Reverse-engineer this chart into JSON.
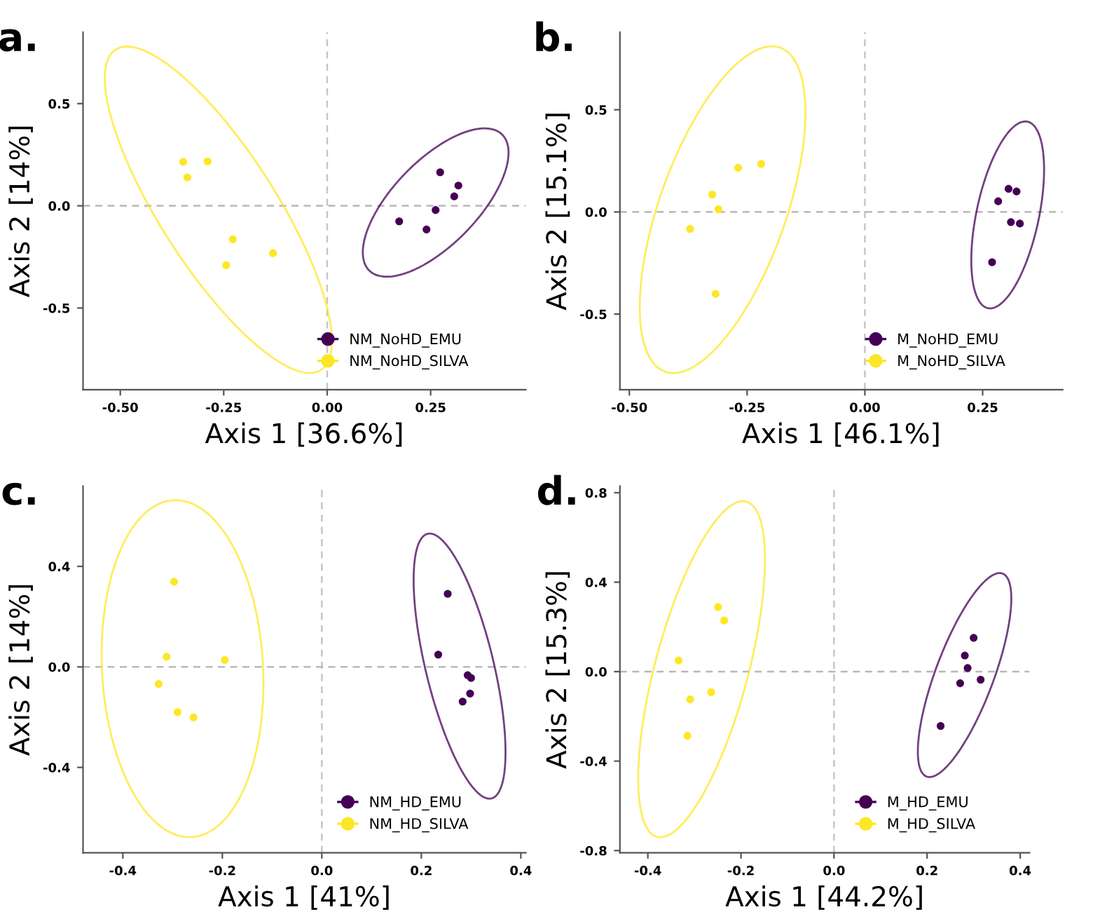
{
  "chart_data": [
    {
      "type": "scatter",
      "title": "a.",
      "xlabel": "Axis 1 [36.6%]",
      "ylabel": "Axis 2 [14%]",
      "xlim": [
        -0.59,
        0.48
      ],
      "ylim": [
        -0.9,
        0.85
      ],
      "xticks": [
        {
          "value": -0.5,
          "label": "-0.50"
        },
        {
          "value": -0.25,
          "label": "-0.25"
        },
        {
          "value": 0,
          "label": "0.00"
        },
        {
          "value": 0.25,
          "label": "0.25"
        }
      ],
      "yticks": [
        {
          "value": -0.5,
          "label": "-0.5"
        },
        {
          "value": 0,
          "label": "0.0"
        },
        {
          "value": 0.5,
          "label": "0.5"
        }
      ],
      "ref_lines": [
        {
          "axis": "x",
          "value": 0,
          "color": "#c6c6c6",
          "line_style": "dashed"
        },
        {
          "axis": "y",
          "value": 0,
          "color": "#b8b8b8",
          "line_style": "dashed"
        }
      ],
      "legend": "bottom right",
      "grid": false,
      "marker": "circle",
      "series": [
        {
          "name": "NM_NoHD_EMU",
          "color": "#440154",
          "x": [
            0.273,
            0.317,
            0.307,
            0.262,
            0.174,
            0.24
          ],
          "values": [
            0.164,
            0.099,
            0.046,
            -0.021,
            -0.076,
            -0.116
          ]
        },
        {
          "name": "NM_NoHD_SILVA",
          "color": "#fde725",
          "x": [
            -0.348,
            -0.289,
            -0.338,
            -0.228,
            -0.131,
            -0.244
          ],
          "values": [
            0.215,
            0.217,
            0.139,
            -0.164,
            -0.232,
            -0.291
          ]
        }
      ]
    },
    {
      "type": "scatter",
      "title": "b.",
      "xlabel": "Axis 1 [46.1%]",
      "ylabel": "Axis 2 [15.1%]",
      "xlim": [
        -0.52,
        0.42
      ],
      "ylim": [
        -0.87,
        0.88
      ],
      "xticks": [
        {
          "value": -0.5,
          "label": "-0.50"
        },
        {
          "value": -0.25,
          "label": "-0.25"
        },
        {
          "value": 0,
          "label": "0.00"
        },
        {
          "value": 0.25,
          "label": "0.25"
        }
      ],
      "yticks": [
        {
          "value": -0.5,
          "label": "-0.5"
        },
        {
          "value": 0,
          "label": "0.0"
        },
        {
          "value": 0.5,
          "label": "0.5"
        }
      ],
      "ref_lines": [
        {
          "axis": "x",
          "value": 0,
          "color": "#c6c6c6",
          "line_style": "dashed"
        },
        {
          "axis": "y",
          "value": 0,
          "color": "#b8b8b8",
          "line_style": "dashed"
        }
      ],
      "legend": "bottom right",
      "grid": false,
      "marker": "circle",
      "series": [
        {
          "name": "M_NoHD_EMU",
          "color": "#440154",
          "x": [
            0.305,
            0.322,
            0.283,
            0.31,
            0.329,
            0.27
          ],
          "values": [
            0.113,
            0.1,
            0.052,
            -0.05,
            -0.057,
            -0.246
          ]
        },
        {
          "name": "M_NoHD_SILVA",
          "color": "#fde725",
          "x": [
            -0.22,
            -0.269,
            -0.324,
            -0.311,
            -0.371,
            -0.317
          ],
          "values": [
            0.235,
            0.216,
            0.085,
            0.013,
            -0.083,
            -0.401
          ]
        }
      ]
    },
    {
      "type": "scatter",
      "title": "c.",
      "xlabel": "Axis 1 [41%]",
      "ylabel": "Axis 2 [14%]",
      "xlim": [
        -0.48,
        0.41
      ],
      "ylim": [
        -0.74,
        0.72
      ],
      "xticks": [
        {
          "value": -0.4,
          "label": "-0.4"
        },
        {
          "value": -0.2,
          "label": "-0.2"
        },
        {
          "value": 0,
          "label": "0.0"
        },
        {
          "value": 0.2,
          "label": "0.2"
        },
        {
          "value": 0.4,
          "label": "0.4"
        }
      ],
      "yticks": [
        {
          "value": -0.4,
          "label": "-0.4"
        },
        {
          "value": 0,
          "label": "0.0"
        },
        {
          "value": 0.4,
          "label": "0.4"
        }
      ],
      "ref_lines": [
        {
          "axis": "x",
          "value": 0,
          "color": "#c6c6c6",
          "line_style": "dashed"
        },
        {
          "axis": "y",
          "value": 0,
          "color": "#b8b8b8",
          "line_style": "dashed"
        }
      ],
      "legend": "bottom right",
      "grid": false,
      "marker": "circle",
      "series": [
        {
          "name": "NM_HD_EMU",
          "color": "#440154",
          "x": [
            0.253,
            0.234,
            0.293,
            0.3,
            0.298,
            0.283
          ],
          "values": [
            0.291,
            0.049,
            -0.033,
            -0.044,
            -0.106,
            -0.138
          ]
        },
        {
          "name": "NM_HD_SILVA",
          "color": "#fde725",
          "x": [
            -0.297,
            -0.312,
            -0.195,
            -0.328,
            -0.29,
            -0.258
          ],
          "values": [
            0.339,
            0.04,
            0.028,
            -0.068,
            -0.18,
            -0.201
          ]
        }
      ]
    },
    {
      "type": "scatter",
      "title": "d.",
      "xlabel": "Axis 1 [44.2%]",
      "ylabel": "Axis 2 [15.3%]",
      "xlim": [
        -0.46,
        0.42
      ],
      "ylim": [
        -0.81,
        0.83
      ],
      "xticks": [
        {
          "value": -0.4,
          "label": "-0.4"
        },
        {
          "value": -0.2,
          "label": "-0.2"
        },
        {
          "value": 0,
          "label": "0.0"
        },
        {
          "value": 0.2,
          "label": "0.2"
        },
        {
          "value": 0.4,
          "label": "0.4"
        }
      ],
      "yticks": [
        {
          "value": -0.8,
          "label": "-0.8"
        },
        {
          "value": -0.4,
          "label": "-0.4"
        },
        {
          "value": 0,
          "label": "0.0"
        },
        {
          "value": 0.4,
          "label": "0.4"
        },
        {
          "value": 0.8,
          "label": "0.8"
        }
      ],
      "ref_lines": [
        {
          "axis": "x",
          "value": 0,
          "color": "#c6c6c6",
          "line_style": "dashed"
        },
        {
          "axis": "y",
          "value": 0,
          "color": "#b8b8b8",
          "line_style": "dashed"
        }
      ],
      "legend": "bottom right",
      "grid": false,
      "marker": "circle",
      "series": [
        {
          "name": "M_HD_EMU",
          "color": "#440154",
          "x": [
            0.3,
            0.281,
            0.287,
            0.315,
            0.271,
            0.229
          ],
          "values": [
            0.151,
            0.072,
            0.016,
            -0.036,
            -0.052,
            -0.243
          ]
        },
        {
          "name": "M_HD_SILVA",
          "color": "#fde725",
          "x": [
            -0.249,
            -0.236,
            -0.334,
            -0.264,
            -0.309,
            -0.315
          ],
          "values": [
            0.289,
            0.229,
            0.05,
            -0.092,
            -0.124,
            -0.287
          ]
        }
      ]
    }
  ]
}
